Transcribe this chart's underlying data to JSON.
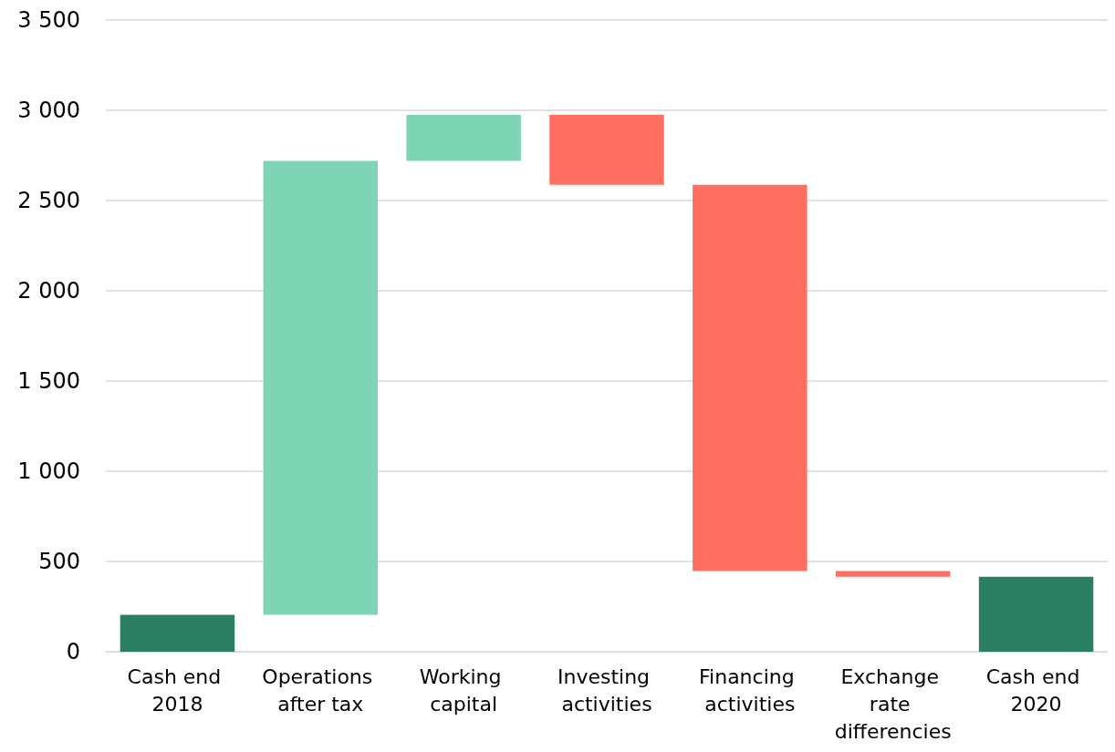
{
  "chart_data": {
    "type": "bar",
    "categories": [
      "Cash end 2018",
      "Operations after tax",
      "Working capital",
      "Investing activities",
      "Financing activities",
      "Exchange rate differencies",
      "Cash end 2020"
    ],
    "values": [
      205,
      2515,
      255,
      -388,
      -2140,
      -32,
      415
    ],
    "base": [
      0,
      205,
      2720,
      2975,
      2587,
      447,
      0
    ],
    "colors": [
      "#2a7f62",
      "#7dd5b6",
      "#7dd5b6",
      "#ff6f61",
      "#ff6f61",
      "#ff6f61",
      "#2a7f62"
    ],
    "ylim": [
      0,
      3500
    ],
    "yticks": [
      0,
      500,
      {
        "value": 1000,
        "label": "1 000"
      },
      {
        "value": 1500,
        "label": "1 500"
      },
      {
        "value": 2000,
        "label": "2 000"
      },
      {
        "value": 2500,
        "label": "2 500"
      },
      {
        "value": 3000,
        "label": "3 000"
      },
      {
        "value": 3500,
        "label": "3 500"
      }
    ],
    "grid": "y"
  }
}
